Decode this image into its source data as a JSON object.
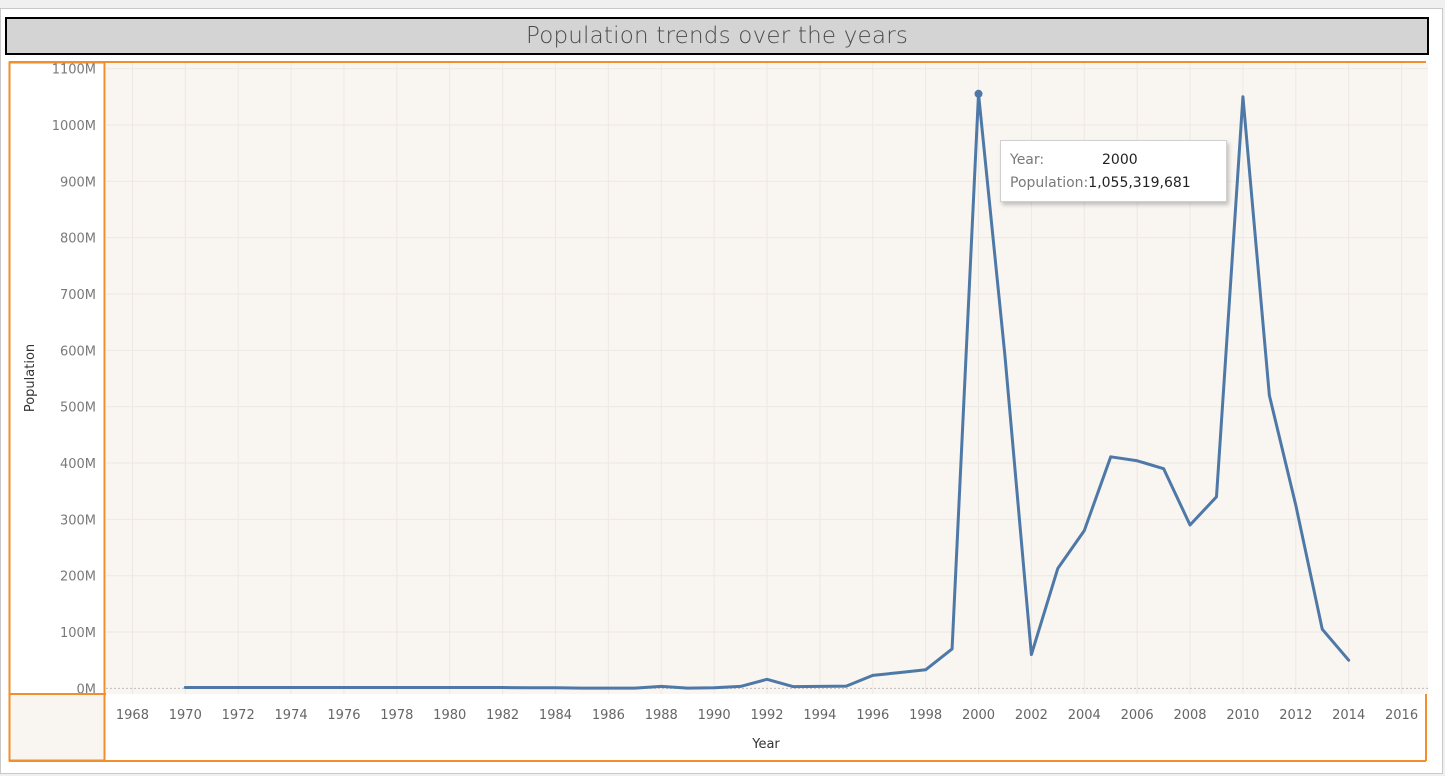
{
  "title": "Population trends over the years",
  "colors": {
    "line": "#4e79a7",
    "plot_background": "#f9f5f1",
    "accent_border": "#f28e2b",
    "title_background": "#d4d4d4",
    "gridline": "#ede8e3"
  },
  "tooltip": {
    "year_label": "Year:",
    "year_value": "2000",
    "population_label": "Population:",
    "population_value": "1,055,319,681"
  },
  "chart_data": {
    "type": "line",
    "title": "Population trends over the years",
    "xlabel": "Year",
    "ylabel": "Population",
    "xlim": [
      1967,
      2017
    ],
    "ylim": [
      -10000000,
      1110000000
    ],
    "x_ticks": [
      1968,
      1970,
      1972,
      1974,
      1976,
      1978,
      1980,
      1982,
      1984,
      1986,
      1988,
      1990,
      1992,
      1994,
      1996,
      1998,
      2000,
      2002,
      2004,
      2006,
      2008,
      2010,
      2012,
      2014,
      2016
    ],
    "y_ticks": [
      {
        "value": 0,
        "label": "0M"
      },
      {
        "value": 100000000,
        "label": "100M"
      },
      {
        "value": 200000000,
        "label": "200M"
      },
      {
        "value": 300000000,
        "label": "300M"
      },
      {
        "value": 400000000,
        "label": "400M"
      },
      {
        "value": 500000000,
        "label": "500M"
      },
      {
        "value": 600000000,
        "label": "600M"
      },
      {
        "value": 700000000,
        "label": "700M"
      },
      {
        "value": 800000000,
        "label": "800M"
      },
      {
        "value": 900000000,
        "label": "900M"
      },
      {
        "value": 1000000000,
        "label": "1000M"
      },
      {
        "value": 1100000000,
        "label": "1100M"
      }
    ],
    "grid": true,
    "highlighted_point": {
      "x": 2000,
      "y": 1055319681
    },
    "series": [
      {
        "x": [
          1970,
          1971,
          1972,
          1973,
          1974,
          1975,
          1976,
          1977,
          1978,
          1979,
          1980,
          1981,
          1982,
          1983,
          1984,
          1985,
          1986,
          1987,
          1988,
          1989,
          1990,
          1991,
          1992,
          1993,
          1994,
          1995,
          1996,
          1997,
          1998,
          1999,
          2000,
          2001,
          2002,
          2003,
          2004,
          2005,
          2006,
          2007,
          2008,
          2009,
          2010,
          2011,
          2012,
          2013,
          2014
        ],
        "y": [
          1500000,
          1500000,
          1500000,
          1500000,
          1500000,
          1500000,
          1500000,
          1500000,
          1500000,
          1500000,
          1500000,
          1500000,
          1500000,
          1000000,
          1000000,
          500000,
          500000,
          500000,
          3500000,
          500000,
          1000000,
          3500000,
          16000000,
          3000000,
          3500000,
          4000000,
          23000000,
          28000000,
          33000000,
          70000000,
          1055319681,
          590000000,
          60000000,
          213000000,
          280000000,
          411000000,
          404000000,
          390000000,
          290000000,
          340000000,
          1050000000,
          520000000,
          325000000,
          105000000,
          50000000
        ]
      }
    ]
  }
}
